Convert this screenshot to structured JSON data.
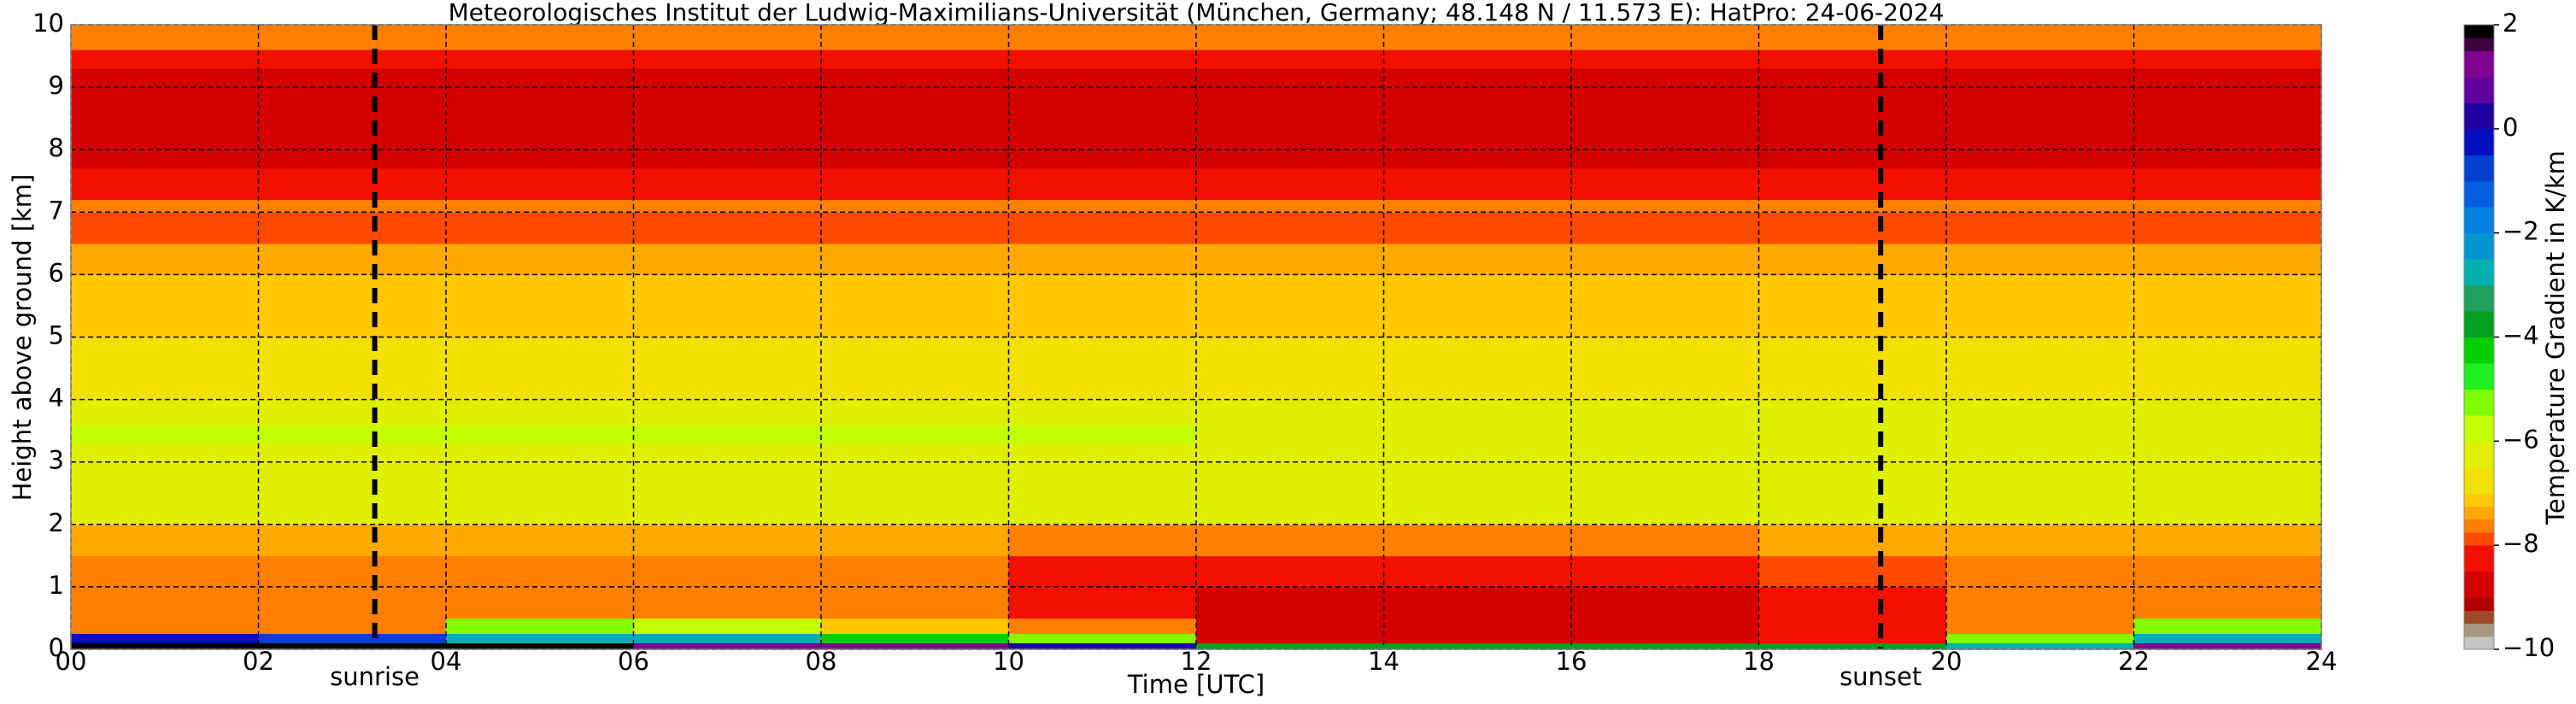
{
  "chart_data": {
    "type": "heatmap",
    "title": "Meteorologisches Institut der Ludwig-Maximilians-Universität (München, Germany; 48.148 N / 11.573 E):    HatPro: 24-06-2024",
    "x_label": "Time [UTC]",
    "y_label": "Height above ground [km]",
    "colorbar_label": "Temperature Gradient in K/km",
    "x": [
      0,
      2,
      4,
      6,
      8,
      10,
      12,
      14,
      16,
      18,
      20,
      22,
      24
    ],
    "y": [
      0,
      0.1,
      0.25,
      0.5,
      1,
      1.5,
      2,
      3,
      3.3,
      3.6,
      4,
      5,
      6,
      6.5,
      7,
      7.2,
      7.7,
      8,
      9.3,
      9.6,
      10
    ],
    "z": [
      [
        1.8,
        1.8,
        1.8,
        1.2,
        1.2,
        0.2,
        -4,
        -4,
        -4,
        -4,
        -3,
        1.2
      ],
      [
        -0.5,
        -1,
        -3,
        -3,
        -4.2,
        -5.2,
        -8.6,
        -8.6,
        -8.6,
        -8.2,
        -5.2,
        -3
      ],
      [
        -7.6,
        -7.6,
        -5.2,
        -5.6,
        -7.2,
        -7.6,
        -8.6,
        -8.6,
        -8.6,
        -8.2,
        -7.6,
        -5.2
      ],
      [
        -7.6,
        -7.6,
        -7.6,
        -7.6,
        -7.6,
        -8.2,
        -8.6,
        -8.6,
        -8.6,
        -8.2,
        -7.6,
        -7.6
      ],
      [
        -7.6,
        -7.6,
        -7.6,
        -7.6,
        -7.6,
        -8.1,
        -8.4,
        -8.5,
        -8.4,
        -7.9,
        -7.6,
        -7.6
      ],
      [
        -7.4,
        -7.4,
        -7.4,
        -7.4,
        -7.4,
        -7.6,
        -7.7,
        -7.7,
        -7.6,
        -7.4,
        -7.4,
        -7.4
      ],
      [
        -6.4,
        -6.4,
        -6.4,
        -6.4,
        -6.4,
        -6.4,
        -6.4,
        -6.4,
        -6.4,
        -6.4,
        -6.4,
        -6.4
      ],
      [
        -6.1,
        -6.1,
        -6.1,
        -6.1,
        -6.1,
        -6.1,
        -6.1,
        -6.1,
        -6.1,
        -6.1,
        -6.1,
        -6.1
      ],
      [
        -5.7,
        -5.7,
        -5.7,
        -5.7,
        -5.7,
        -5.9,
        -6.1,
        -6.1,
        -6.1,
        -6.1,
        -6.1,
        -6.1
      ],
      [
        -6.2,
        -6.2,
        -6.2,
        -6.2,
        -6.2,
        -6.2,
        -6.2,
        -6.2,
        -6.2,
        -6.2,
        -6.2,
        -6.2
      ],
      [
        -6.7,
        -6.7,
        -6.7,
        -6.7,
        -6.7,
        -6.7,
        -6.7,
        -6.7,
        -6.7,
        -6.7,
        -6.7,
        -6.7
      ],
      [
        -7.1,
        -7.1,
        -7.1,
        -7.1,
        -7.1,
        -7.1,
        -7.1,
        -7.1,
        -7.1,
        -7.1,
        -7.1,
        -7.1
      ],
      [
        -7.4,
        -7.4,
        -7.4,
        -7.4,
        -7.4,
        -7.4,
        -7.4,
        -7.4,
        -7.4,
        -7.4,
        -7.4,
        -7.4
      ],
      [
        -7.9,
        -7.9,
        -7.9,
        -7.9,
        -7.9,
        -7.9,
        -7.9,
        -7.9,
        -7.9,
        -7.9,
        -7.9,
        -7.9
      ],
      [
        -7.6,
        -7.6,
        -7.6,
        -7.6,
        -7.6,
        -7.6,
        -7.6,
        -7.6,
        -7.6,
        -7.6,
        -7.6,
        -7.6
      ],
      [
        -8.4,
        -8.4,
        -8.4,
        -8.4,
        -8.4,
        -8.4,
        -8.4,
        -8.4,
        -8.4,
        -8.4,
        -8.4,
        -8.4
      ],
      [
        -8.6,
        -8.6,
        -8.6,
        -8.6,
        -8.6,
        -8.6,
        -8.6,
        -8.6,
        -8.6,
        -8.6,
        -8.6,
        -8.6
      ],
      [
        -8.8,
        -8.8,
        -8.8,
        -8.8,
        -8.8,
        -8.8,
        -8.8,
        -8.8,
        -8.8,
        -8.8,
        -8.8,
        -8.8
      ],
      [
        -8.2,
        -8.2,
        -8.2,
        -8.2,
        -8.2,
        -8.2,
        -8.2,
        -8.2,
        -8.2,
        -8.2,
        -8.2,
        -8.2
      ],
      [
        -7.6,
        -7.6,
        -7.6,
        -7.6,
        -7.6,
        -7.6,
        -7.6,
        -7.6,
        -7.6,
        -7.6,
        -7.6,
        -7.6
      ]
    ],
    "xlim": [
      0,
      24
    ],
    "ylim": [
      0,
      10
    ],
    "zlim": [
      -10,
      2
    ],
    "xticks": [
      {
        "value": 0,
        "label": "00"
      },
      {
        "value": 2,
        "label": "02"
      },
      {
        "value": 4,
        "label": "04"
      },
      {
        "value": 6,
        "label": "06"
      },
      {
        "value": 8,
        "label": "08"
      },
      10,
      12,
      14,
      16,
      18,
      20,
      22,
      24
    ],
    "yticks": [
      0,
      1,
      2,
      3,
      4,
      5,
      6,
      7,
      8,
      9,
      10
    ],
    "zticks": [
      {
        "value": -10,
        "label": "−10"
      },
      {
        "value": -8,
        "label": "−8"
      },
      {
        "value": -6,
        "label": "−6"
      },
      {
        "value": -4,
        "label": "−4"
      },
      {
        "value": -2,
        "label": "−2"
      },
      0,
      2
    ],
    "colorscale": [
      {
        "value": -10,
        "color": "#c4c4c4"
      },
      {
        "value": -9.75,
        "color": "#a89880"
      },
      {
        "value": -9.5,
        "color": "#a04828"
      },
      {
        "value": -9.25,
        "color": "#b00000"
      },
      {
        "value": -9,
        "color": "#d40000"
      },
      {
        "value": -8.5,
        "color": "#f21000"
      },
      {
        "value": -8,
        "color": "#ff4a00"
      },
      {
        "value": -7.75,
        "color": "#ff8000"
      },
      {
        "value": -7.5,
        "color": "#ffa800"
      },
      {
        "value": -7.25,
        "color": "#ffc800"
      },
      {
        "value": -7,
        "color": "#f2e000"
      },
      {
        "value": -6.5,
        "color": "#e0ee00"
      },
      {
        "value": -6,
        "color": "#c4ff00"
      },
      {
        "value": -5.5,
        "color": "#80ff00"
      },
      {
        "value": -5,
        "color": "#20f020"
      },
      {
        "value": -4.5,
        "color": "#00d000"
      },
      {
        "value": -4,
        "color": "#00a020"
      },
      {
        "value": -3.5,
        "color": "#20a060"
      },
      {
        "value": -3,
        "color": "#00b0b0"
      },
      {
        "value": -2.5,
        "color": "#0096d0"
      },
      {
        "value": -2,
        "color": "#0080e0"
      },
      {
        "value": -1.5,
        "color": "#0060e0"
      },
      {
        "value": -1,
        "color": "#0040d0"
      },
      {
        "value": -0.5,
        "color": "#0010c0"
      },
      {
        "value": 0,
        "color": "#2000a0"
      },
      {
        "value": 0.5,
        "color": "#6000a0"
      },
      {
        "value": 1,
        "color": "#800090"
      },
      {
        "value": 1.5,
        "color": "#400040"
      },
      {
        "value": 1.75,
        "color": "#000000"
      }
    ],
    "grid": true,
    "annotations": [
      {
        "text": "sunrise",
        "x": 3.24
      },
      {
        "text": "sunset",
        "x": 19.3
      }
    ]
  }
}
